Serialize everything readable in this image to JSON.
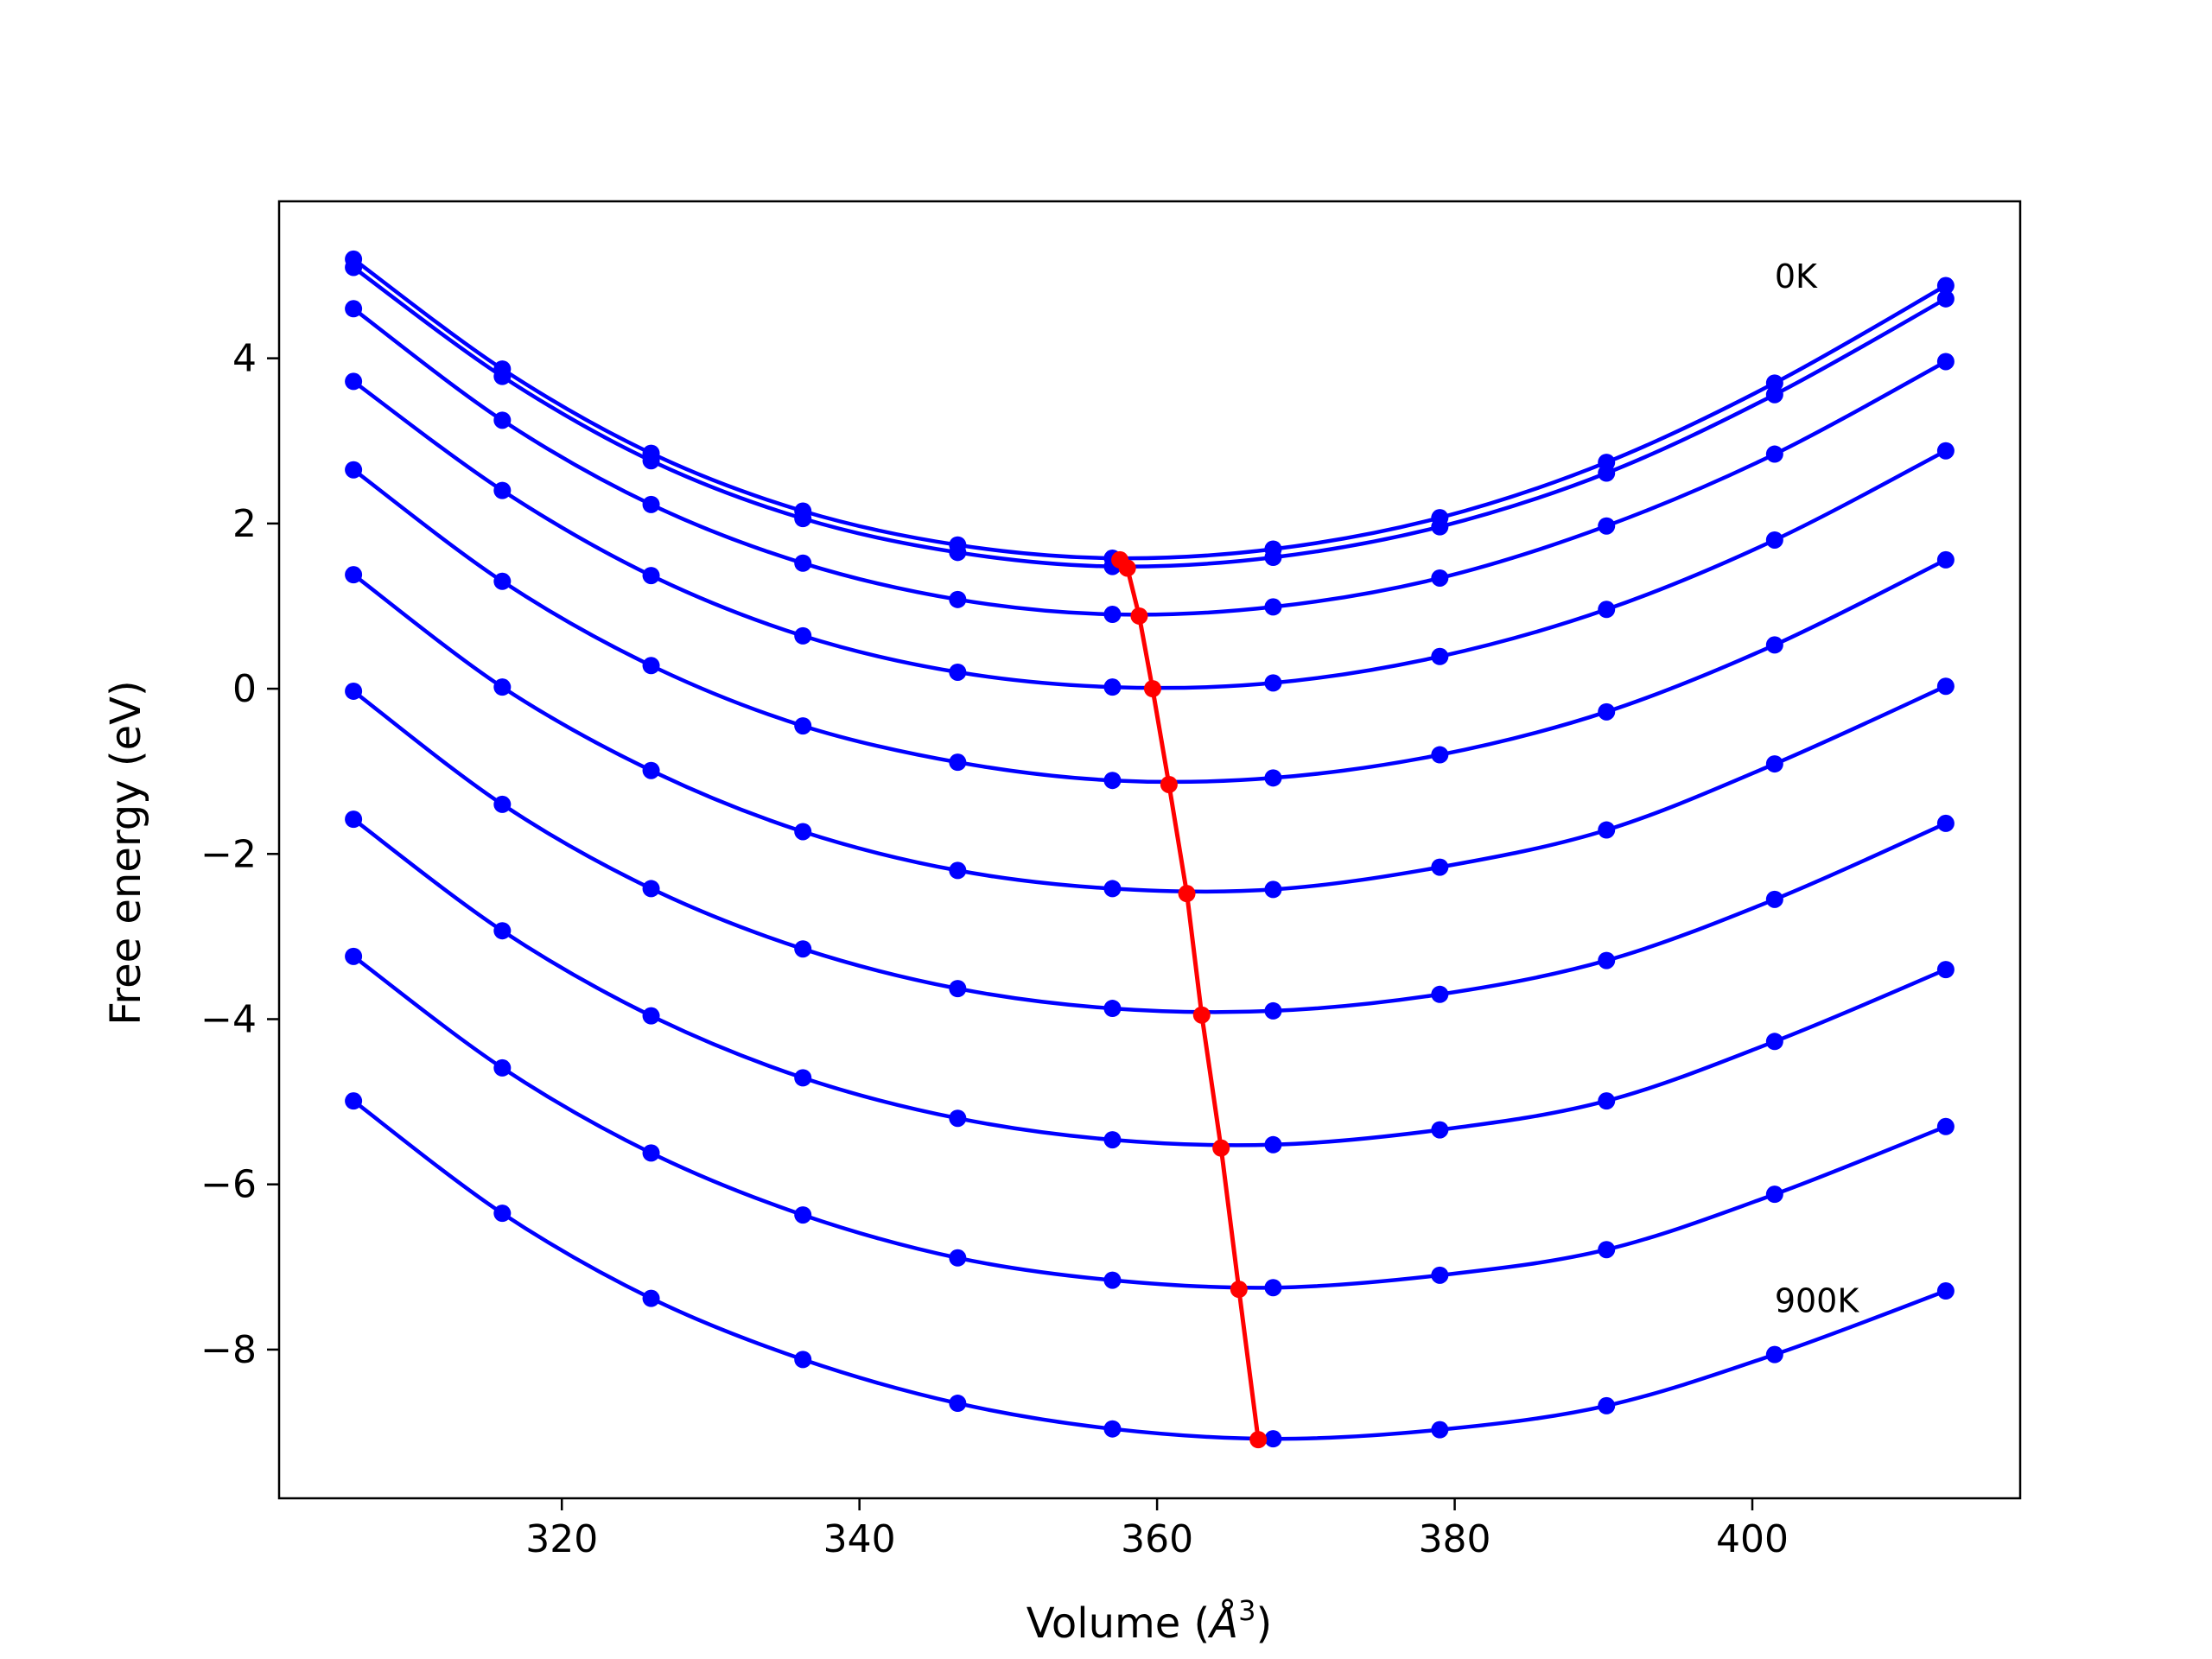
{
  "chart_data": {
    "type": "line",
    "title": "",
    "xlabel_main": "Volume (",
    "xlabel_unit": "Å",
    "xlabel_sup": "3",
    "xlabel_close": ")",
    "ylabel": "Free energy (eV)",
    "xlim": [
      301,
      418
    ],
    "ylim": [
      -9.8,
      5.9
    ],
    "xticks": [
      320,
      340,
      360,
      380,
      400
    ],
    "yticks": [
      4,
      2,
      0,
      -2,
      -4,
      -6,
      -8
    ],
    "xtick_labels": [
      "320",
      "340",
      "360",
      "380",
      "400"
    ],
    "ytick_labels": [
      "4",
      "2",
      "0",
      "−2",
      "−4",
      "−6",
      "−8"
    ],
    "grid": false,
    "annotations": [
      {
        "text": "0K",
        "x": 401.5,
        "y": 5.0
      },
      {
        "text": "900K",
        "x": 401.5,
        "y": -7.4
      }
    ],
    "colors": {
      "series": "#0000ff",
      "minimum": "#ff0000"
    },
    "volumes": [
      306,
      316,
      326,
      336.2,
      346.6,
      357,
      367.8,
      379,
      390.2,
      401.5,
      413
    ],
    "series": [
      {
        "values": [
          5.2,
          3.87,
          2.85,
          2.15,
          1.74,
          1.58,
          1.69,
          2.07,
          2.74,
          3.7,
          4.88
        ],
        "minimum": [
          357.5,
          1.56
        ]
      },
      {
        "values": [
          5.1,
          3.78,
          2.76,
          2.06,
          1.65,
          1.48,
          1.59,
          1.96,
          2.61,
          3.56,
          4.72
        ],
        "minimum": [
          358,
          1.46
        ]
      },
      {
        "values": [
          4.6,
          3.25,
          2.23,
          1.52,
          1.08,
          0.9,
          0.99,
          1.34,
          1.97,
          2.84,
          3.96
        ],
        "minimum": [
          358.8,
          0.88
        ]
      },
      {
        "values": [
          3.72,
          2.4,
          1.37,
          0.64,
          0.2,
          0.02,
          0.07,
          0.39,
          0.96,
          1.8,
          2.88
        ],
        "minimum": [
          359.7,
          0.0
        ]
      },
      {
        "values": [
          2.65,
          1.3,
          0.28,
          -0.45,
          -0.89,
          -1.11,
          -1.08,
          -0.8,
          -0.28,
          0.53,
          1.56
        ],
        "minimum": [
          360.8,
          -1.16
        ]
      },
      {
        "values": [
          1.38,
          0.02,
          -0.99,
          -1.73,
          -2.2,
          -2.42,
          -2.43,
          -2.16,
          -1.71,
          -0.91,
          0.03
        ],
        "minimum": [
          362,
          -2.48
        ]
      },
      {
        "values": [
          -0.03,
          -1.4,
          -2.42,
          -3.15,
          -3.63,
          -3.87,
          -3.9,
          -3.7,
          -3.29,
          -2.55,
          -1.63
        ],
        "minimum": [
          363,
          -3.95
        ]
      },
      {
        "values": [
          -1.58,
          -2.93,
          -3.96,
          -4.71,
          -5.2,
          -5.46,
          -5.52,
          -5.34,
          -4.99,
          -4.27,
          -3.4
        ],
        "minimum": [
          364.3,
          -5.56
        ]
      },
      {
        "values": [
          -3.24,
          -4.59,
          -5.62,
          -6.37,
          -6.89,
          -7.16,
          -7.25,
          -7.1,
          -6.79,
          -6.12,
          -5.3
        ],
        "minimum": [
          365.5,
          -7.27
        ]
      },
      {
        "values": [
          -4.99,
          -6.35,
          -7.38,
          -8.12,
          -8.65,
          -8.96,
          -9.08,
          -8.97,
          -8.68,
          -8.06,
          -7.29
        ],
        "minimum": [
          366.8,
          -9.09
        ]
      }
    ]
  }
}
